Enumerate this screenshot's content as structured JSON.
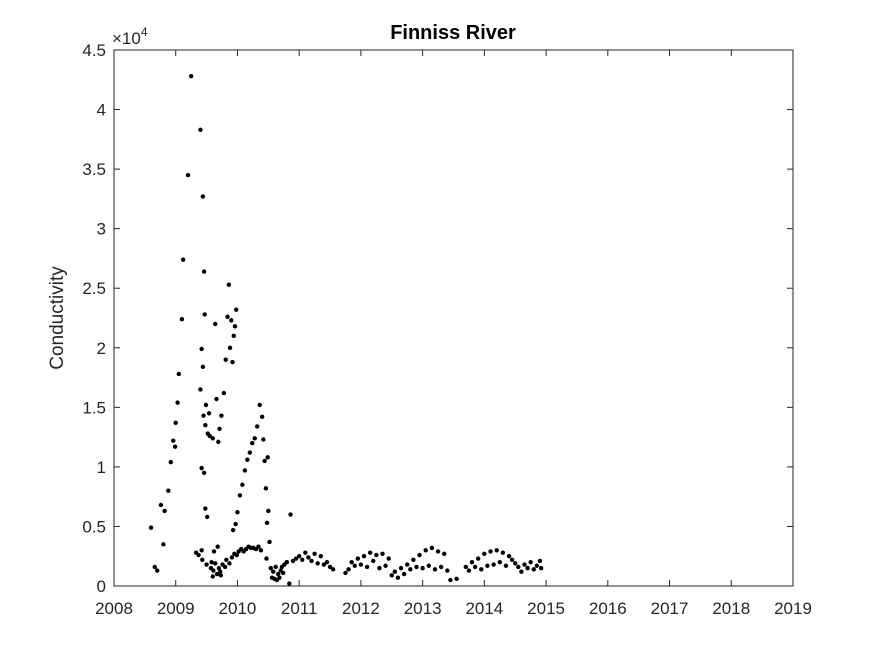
{
  "chart_data": {
    "type": "scatter",
    "title": "Finniss River",
    "xlabel": "",
    "ylabel": "Conductivity",
    "xlim": [
      2008,
      2019
    ],
    "ylim": [
      0,
      45000
    ],
    "x_ticks": [
      2008,
      2009,
      2010,
      2011,
      2012,
      2013,
      2014,
      2015,
      2016,
      2017,
      2018,
      2019
    ],
    "x_tick_labels": [
      "2008",
      "2009",
      "2010",
      "2011",
      "2012",
      "2013",
      "2014",
      "2015",
      "2016",
      "2017",
      "2018",
      "2019"
    ],
    "y_ticks": [
      0,
      5000,
      10000,
      15000,
      20000,
      25000,
      30000,
      35000,
      40000,
      45000
    ],
    "y_tick_labels": [
      "0",
      "0.5",
      "1",
      "1.5",
      "2",
      "2.5",
      "3",
      "3.5",
      "4",
      "4.5"
    ],
    "y_exponent_label": {
      "base": "×10",
      "power": "4"
    },
    "marker_color": "#000000",
    "series": [
      {
        "name": "Conductivity",
        "points": [
          [
            2008.6,
            4900
          ],
          [
            2008.66,
            1600
          ],
          [
            2008.7,
            1300
          ],
          [
            2008.76,
            6800
          ],
          [
            2008.8,
            3500
          ],
          [
            2008.82,
            6300
          ],
          [
            2008.88,
            8000
          ],
          [
            2008.92,
            10400
          ],
          [
            2008.96,
            12200
          ],
          [
            2008.99,
            11700
          ],
          [
            2009.0,
            13700
          ],
          [
            2009.03,
            15400
          ],
          [
            2009.05,
            17800
          ],
          [
            2009.1,
            22400
          ],
          [
            2009.12,
            27400
          ],
          [
            2009.2,
            34500
          ],
          [
            2009.25,
            42800
          ],
          [
            2009.33,
            2800
          ],
          [
            2009.37,
            2600
          ],
          [
            2009.4,
            38300
          ],
          [
            2009.4,
            16500
          ],
          [
            2009.42,
            19900
          ],
          [
            2009.42,
            9900
          ],
          [
            2009.42,
            3000
          ],
          [
            2009.43,
            2200
          ],
          [
            2009.44,
            32700
          ],
          [
            2009.44,
            18400
          ],
          [
            2009.45,
            14300
          ],
          [
            2009.46,
            26400
          ],
          [
            2009.46,
            9500
          ],
          [
            2009.47,
            22800
          ],
          [
            2009.48,
            13500
          ],
          [
            2009.48,
            6500
          ],
          [
            2009.49,
            15200
          ],
          [
            2009.5,
            1800
          ],
          [
            2009.51,
            5800
          ],
          [
            2009.52,
            12800
          ],
          [
            2009.54,
            14500
          ],
          [
            2009.55,
            12600
          ],
          [
            2009.57,
            1500
          ],
          [
            2009.58,
            2000
          ],
          [
            2009.6,
            800
          ],
          [
            2009.6,
            12400
          ],
          [
            2009.61,
            1300
          ],
          [
            2009.62,
            2900
          ],
          [
            2009.64,
            1900
          ],
          [
            2009.64,
            22000
          ],
          [
            2009.66,
            15700
          ],
          [
            2009.67,
            1000
          ],
          [
            2009.68,
            3300
          ],
          [
            2009.69,
            12100
          ],
          [
            2009.7,
            1500
          ],
          [
            2009.71,
            13200
          ],
          [
            2009.72,
            1200
          ],
          [
            2009.73,
            900
          ],
          [
            2009.74,
            14300
          ],
          [
            2009.76,
            1800
          ],
          [
            2009.78,
            16200
          ],
          [
            2009.8,
            1600
          ],
          [
            2009.81,
            19000
          ],
          [
            2009.82,
            2200
          ],
          [
            2009.84,
            22600
          ],
          [
            2009.86,
            25300
          ],
          [
            2009.87,
            1900
          ],
          [
            2009.88,
            20000
          ],
          [
            2009.9,
            22300
          ],
          [
            2009.91,
            2400
          ],
          [
            2009.92,
            18800
          ],
          [
            2009.93,
            4700
          ],
          [
            2009.94,
            21000
          ],
          [
            2009.95,
            2700
          ],
          [
            2009.96,
            21800
          ],
          [
            2009.97,
            5200
          ],
          [
            2009.98,
            23200
          ],
          [
            2009.99,
            2600
          ],
          [
            2010.0,
            6200
          ],
          [
            2010.02,
            2900
          ],
          [
            2010.04,
            7600
          ],
          [
            2010.06,
            3100
          ],
          [
            2010.08,
            8500
          ],
          [
            2010.1,
            2900
          ],
          [
            2010.12,
            9700
          ],
          [
            2010.14,
            3100
          ],
          [
            2010.16,
            10600
          ],
          [
            2010.18,
            3300
          ],
          [
            2010.2,
            11200
          ],
          [
            2010.22,
            3200
          ],
          [
            2010.24,
            12000
          ],
          [
            2010.26,
            3200
          ],
          [
            2010.28,
            12400
          ],
          [
            2010.3,
            3100
          ],
          [
            2010.32,
            13400
          ],
          [
            2010.34,
            3300
          ],
          [
            2010.36,
            15200
          ],
          [
            2010.38,
            3000
          ],
          [
            2010.4,
            14200
          ],
          [
            2010.42,
            12300
          ],
          [
            2010.44,
            10500
          ],
          [
            2010.46,
            8200
          ],
          [
            2010.47,
            2300
          ],
          [
            2010.48,
            5300
          ],
          [
            2010.49,
            10800
          ],
          [
            2010.5,
            6300
          ],
          [
            2010.52,
            3700
          ],
          [
            2010.54,
            1500
          ],
          [
            2010.56,
            700
          ],
          [
            2010.58,
            1200
          ],
          [
            2010.6,
            600
          ],
          [
            2010.62,
            1600
          ],
          [
            2010.64,
            500
          ],
          [
            2010.66,
            1000
          ],
          [
            2010.68,
            700
          ],
          [
            2010.7,
            1300
          ],
          [
            2010.72,
            1600
          ],
          [
            2010.74,
            1100
          ],
          [
            2010.76,
            1800
          ],
          [
            2010.8,
            2000
          ],
          [
            2010.84,
            200
          ],
          [
            2010.86,
            6000
          ],
          [
            2010.9,
            2100
          ],
          [
            2010.95,
            2300
          ],
          [
            2011.0,
            2500
          ],
          [
            2011.05,
            2200
          ],
          [
            2011.1,
            2800
          ],
          [
            2011.15,
            2400
          ],
          [
            2011.2,
            2100
          ],
          [
            2011.25,
            2700
          ],
          [
            2011.3,
            1900
          ],
          [
            2011.35,
            2500
          ],
          [
            2011.4,
            1800
          ],
          [
            2011.45,
            2000
          ],
          [
            2011.5,
            1600
          ],
          [
            2011.55,
            1400
          ],
          [
            2011.75,
            1100
          ],
          [
            2011.8,
            1400
          ],
          [
            2011.85,
            2000
          ],
          [
            2011.9,
            1700
          ],
          [
            2011.95,
            2300
          ],
          [
            2012.0,
            1800
          ],
          [
            2012.05,
            2500
          ],
          [
            2012.1,
            1600
          ],
          [
            2012.15,
            2800
          ],
          [
            2012.2,
            2100
          ],
          [
            2012.25,
            2600
          ],
          [
            2012.3,
            1500
          ],
          [
            2012.35,
            2700
          ],
          [
            2012.4,
            1700
          ],
          [
            2012.45,
            2300
          ],
          [
            2012.5,
            900
          ],
          [
            2012.55,
            1200
          ],
          [
            2012.6,
            700
          ],
          [
            2012.65,
            1500
          ],
          [
            2012.7,
            1000
          ],
          [
            2012.75,
            1800
          ],
          [
            2012.8,
            1400
          ],
          [
            2012.85,
            2200
          ],
          [
            2012.9,
            1600
          ],
          [
            2012.95,
            2600
          ],
          [
            2013.0,
            1500
          ],
          [
            2013.05,
            3000
          ],
          [
            2013.1,
            1700
          ],
          [
            2013.15,
            3200
          ],
          [
            2013.2,
            1400
          ],
          [
            2013.25,
            2900
          ],
          [
            2013.3,
            1600
          ],
          [
            2013.35,
            2700
          ],
          [
            2013.4,
            1300
          ],
          [
            2013.45,
            500
          ],
          [
            2013.55,
            600
          ],
          [
            2013.7,
            1600
          ],
          [
            2013.75,
            1300
          ],
          [
            2013.8,
            2000
          ],
          [
            2013.85,
            1600
          ],
          [
            2013.9,
            2300
          ],
          [
            2013.95,
            1400
          ],
          [
            2014.0,
            2700
          ],
          [
            2014.05,
            1700
          ],
          [
            2014.1,
            2900
          ],
          [
            2014.15,
            1800
          ],
          [
            2014.2,
            3000
          ],
          [
            2014.25,
            2000
          ],
          [
            2014.3,
            2800
          ],
          [
            2014.35,
            1700
          ],
          [
            2014.4,
            2500
          ],
          [
            2014.45,
            2200
          ],
          [
            2014.5,
            1900
          ],
          [
            2014.55,
            1600
          ],
          [
            2014.6,
            1200
          ],
          [
            2014.65,
            1800
          ],
          [
            2014.7,
            1500
          ],
          [
            2014.75,
            2000
          ],
          [
            2014.8,
            1400
          ],
          [
            2014.85,
            1700
          ],
          [
            2014.9,
            2100
          ],
          [
            2014.92,
            1500
          ]
        ]
      }
    ]
  }
}
